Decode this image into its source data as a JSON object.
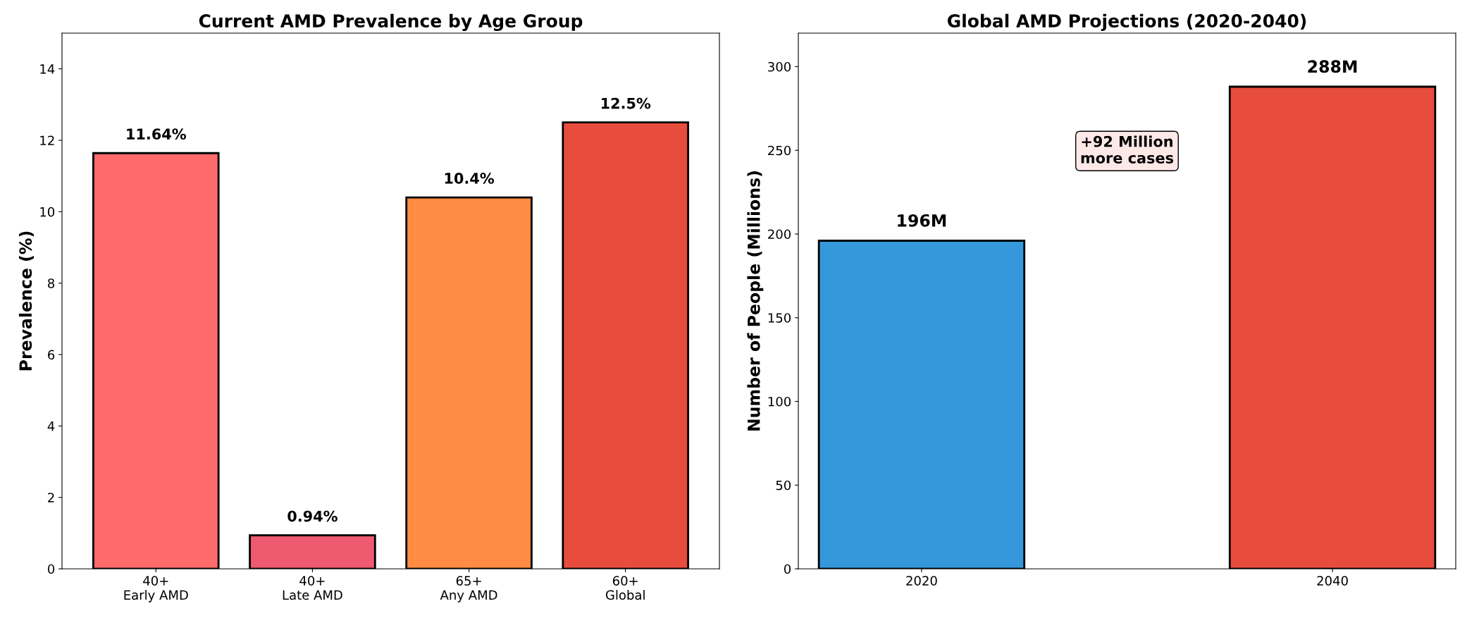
{
  "chart_data": [
    {
      "type": "bar",
      "title": "Current AMD Prevalence by Age Group",
      "ylabel": "Prevalence (%)",
      "categories": [
        "40+\nEarly AMD",
        "40+\nLate AMD",
        "65+\nAny AMD",
        "60+\nGlobal"
      ],
      "values": [
        11.64,
        0.94,
        10.4,
        12.5
      ],
      "colors": [
        "#ff6b6b",
        "#ee5a6f",
        "#ff8c42",
        "#e74c3c"
      ],
      "value_labels": [
        "11.64%",
        "0.94%",
        "10.4%",
        "12.5%"
      ],
      "ylim": [
        0,
        15
      ],
      "yticks": [
        0,
        2,
        4,
        6,
        8,
        10,
        12,
        14
      ],
      "grid": false,
      "legend": false
    },
    {
      "type": "bar",
      "title": "Global AMD Projections (2020-2040)",
      "ylabel": "Number of People (Millions)",
      "categories": [
        "2020",
        "2040"
      ],
      "values": [
        196,
        288
      ],
      "colors": [
        "#3498db",
        "#e74c3c"
      ],
      "value_labels": [
        "196M",
        "288M"
      ],
      "annotations": [
        "+92 Million\nmore cases"
      ],
      "ylim": [
        0,
        320
      ],
      "yticks": [
        0,
        50,
        100,
        150,
        200,
        250,
        300
      ],
      "grid": false,
      "legend": false
    }
  ]
}
